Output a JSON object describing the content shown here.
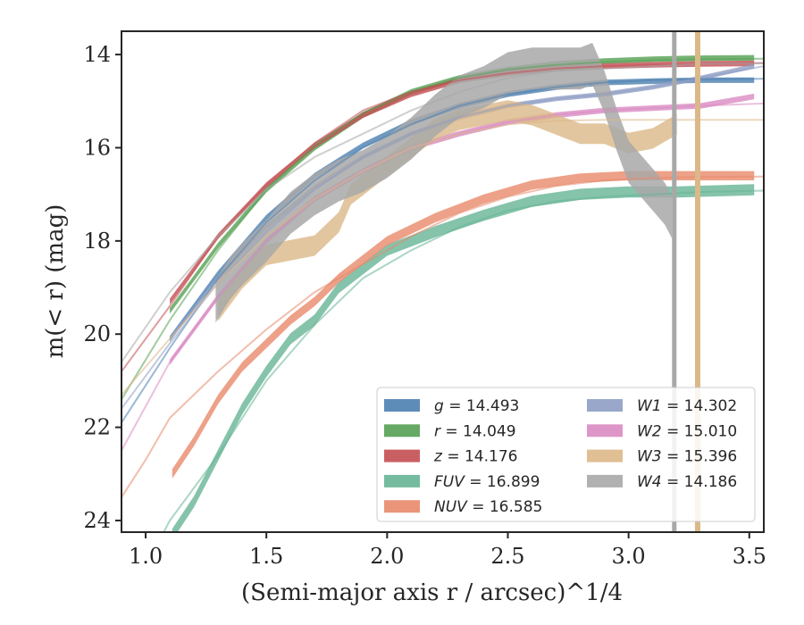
{
  "chart_data": {
    "type": "line",
    "xlabel": "(Semi-major axis r / arcsec)^1/4",
    "ylabel": "m(< r) (mag)",
    "xlim": [
      0.9,
      3.56
    ],
    "ylim": [
      24.25,
      13.5
    ],
    "y_inverted": true,
    "grid": false,
    "legend_position": "lower-right",
    "x_ticks": [
      "1.0",
      "1.5",
      "2.0",
      "2.5",
      "3.0",
      "3.5"
    ],
    "y_ticks": [
      "14",
      "16",
      "18",
      "20",
      "22",
      "24"
    ],
    "legend": [
      {
        "band": "g",
        "label_value": "14.493",
        "color": "#4c7fb0"
      },
      {
        "band": "r",
        "label_value": "14.049",
        "color": "#55a053"
      },
      {
        "band": "z",
        "label_value": "14.176",
        "color": "#c44e52"
      },
      {
        "band": "FUV",
        "label_value": "16.899",
        "color": "#66b496"
      },
      {
        "band": "NUV",
        "label_value": "16.585",
        "color": "#e8896a"
      },
      {
        "band": "W1",
        "label_value": "14.302",
        "color": "#8e9ec4"
      },
      {
        "band": "W2",
        "label_value": "15.010",
        "color": "#da8bc3"
      },
      {
        "band": "W3",
        "label_value": "15.396",
        "color": "#dbb887"
      },
      {
        "band": "W4",
        "label_value": "14.186",
        "color": "#a8a8a8"
      }
    ],
    "series": [
      {
        "name": "g",
        "model_x": [
          0.9,
          1.1,
          1.3,
          1.5,
          1.7,
          1.9,
          2.1,
          2.3,
          2.5,
          2.7,
          2.9,
          3.1,
          3.3,
          3.56
        ],
        "model_y": [
          21.9,
          20.3,
          18.8,
          17.6,
          16.7,
          16.0,
          15.5,
          15.1,
          14.85,
          14.7,
          14.6,
          14.55,
          14.53,
          14.52
        ],
        "band_x": [
          1.1,
          1.3,
          1.5,
          1.7,
          1.9,
          2.1,
          2.3,
          2.5,
          2.7,
          2.9,
          3.1,
          3.3,
          3.52
        ],
        "band_y": [
          20.1,
          18.7,
          17.5,
          16.6,
          15.95,
          15.45,
          15.1,
          14.85,
          14.7,
          14.6,
          14.57,
          14.55,
          14.55
        ],
        "band_halfwidth": 0.06
      },
      {
        "name": "r",
        "model_x": [
          0.9,
          1.1,
          1.3,
          1.5,
          1.7,
          1.9,
          2.1,
          2.3,
          2.5,
          2.7,
          2.9,
          3.1,
          3.3,
          3.56
        ],
        "model_y": [
          21.4,
          19.7,
          18.2,
          16.9,
          15.95,
          15.25,
          14.8,
          14.5,
          14.32,
          14.22,
          14.16,
          14.12,
          14.1,
          14.09
        ],
        "band_x": [
          1.1,
          1.3,
          1.5,
          1.7,
          1.9,
          2.1,
          2.3,
          2.5,
          2.7,
          2.9,
          3.1,
          3.3,
          3.52
        ],
        "band_y": [
          19.5,
          18.1,
          16.9,
          16.0,
          15.3,
          14.8,
          14.5,
          14.32,
          14.2,
          14.14,
          14.1,
          14.08,
          14.07
        ],
        "band_halfwidth": 0.06
      },
      {
        "name": "z",
        "model_x": [
          0.9,
          1.1,
          1.3,
          1.5,
          1.7,
          1.9,
          2.1,
          2.3,
          2.5,
          2.7,
          2.9,
          3.1,
          3.3,
          3.56
        ],
        "model_y": [
          20.8,
          19.4,
          17.9,
          16.8,
          15.9,
          15.2,
          14.8,
          14.55,
          14.4,
          14.3,
          14.25,
          14.22,
          14.2,
          14.18
        ],
        "band_x": [
          1.1,
          1.3,
          1.5,
          1.7,
          1.9,
          2.1,
          2.3,
          2.5,
          2.7,
          2.9,
          3.1,
          3.3,
          3.52
        ],
        "band_y": [
          19.3,
          17.9,
          16.8,
          15.95,
          15.3,
          14.85,
          14.55,
          14.4,
          14.3,
          14.25,
          14.22,
          14.2,
          14.19
        ],
        "band_halfwidth": 0.06
      },
      {
        "name": "FUV",
        "model_x": [
          0.9,
          1.0,
          1.1,
          1.3,
          1.5,
          1.7,
          1.9,
          2.1,
          2.3,
          2.5,
          2.7,
          2.9,
          3.1,
          3.3,
          3.56
        ],
        "model_y": [
          26.0,
          25.0,
          24.0,
          22.6,
          21.0,
          19.8,
          18.8,
          18.2,
          17.7,
          17.35,
          17.15,
          17.05,
          17.0,
          16.95,
          16.92
        ],
        "band_x": [
          1.11,
          1.2,
          1.3,
          1.4,
          1.5,
          1.6,
          1.7,
          1.8,
          1.9,
          2.0,
          2.2,
          2.4,
          2.6,
          2.8,
          3.0,
          3.2,
          3.52
        ],
        "band_y": [
          24.3,
          23.6,
          22.6,
          21.6,
          20.8,
          20.1,
          19.7,
          19.0,
          18.6,
          18.2,
          17.8,
          17.45,
          17.15,
          17.0,
          16.95,
          16.95,
          16.9
        ],
        "band_halfwidth": 0.12
      },
      {
        "name": "NUV",
        "model_x": [
          0.9,
          1.0,
          1.1,
          1.3,
          1.5,
          1.7,
          1.9,
          2.1,
          2.3,
          2.5,
          2.7,
          2.9,
          3.1,
          3.3,
          3.56
        ],
        "model_y": [
          23.5,
          22.7,
          21.8,
          20.8,
          19.9,
          19.1,
          18.5,
          17.9,
          17.4,
          17.05,
          16.82,
          16.7,
          16.65,
          16.63,
          16.62
        ],
        "band_x": [
          1.11,
          1.2,
          1.3,
          1.4,
          1.5,
          1.6,
          1.7,
          1.8,
          1.9,
          2.0,
          2.2,
          2.4,
          2.6,
          2.8,
          3.0,
          3.2,
          3.52
        ],
        "band_y": [
          23.0,
          22.3,
          21.4,
          20.7,
          20.2,
          19.7,
          19.3,
          18.8,
          18.4,
          18.0,
          17.5,
          17.1,
          16.8,
          16.65,
          16.6,
          16.6,
          16.6
        ],
        "band_halfwidth": 0.1
      },
      {
        "name": "W1",
        "model_x": [
          0.9,
          1.1,
          1.3,
          1.5,
          1.7,
          1.9,
          2.1,
          2.3,
          2.5,
          2.7,
          2.9,
          3.1,
          3.3,
          3.56
        ],
        "model_y": [
          21.6,
          20.2,
          18.9,
          17.8,
          16.9,
          16.2,
          15.7,
          15.35,
          15.1,
          14.95,
          14.85,
          14.7,
          14.5,
          14.25
        ],
        "band_x": [
          1.1,
          1.3,
          1.5,
          1.7,
          1.9,
          2.1,
          2.3,
          2.5,
          2.7,
          2.9,
          3.1,
          3.3,
          3.52
        ],
        "band_y": [
          20.1,
          18.8,
          17.7,
          16.85,
          16.2,
          15.7,
          15.35,
          15.1,
          14.95,
          14.85,
          14.7,
          14.5,
          14.25
        ],
        "band_halfwidth": 0.05
      },
      {
        "name": "W2",
        "model_x": [
          0.9,
          1.1,
          1.3,
          1.5,
          1.7,
          1.9,
          2.1,
          2.3,
          2.5,
          2.7,
          2.9,
          3.1,
          3.3,
          3.56
        ],
        "model_y": [
          22.5,
          20.6,
          19.2,
          18.0,
          17.1,
          16.5,
          16.0,
          15.7,
          15.45,
          15.3,
          15.2,
          15.15,
          15.1,
          15.05
        ],
        "band_x": [
          1.1,
          1.3,
          1.5,
          1.7,
          1.9,
          2.1,
          2.3,
          2.5,
          2.7,
          2.9,
          3.1,
          3.3,
          3.52
        ],
        "band_y": [
          20.6,
          19.2,
          18.0,
          17.1,
          16.5,
          16.0,
          15.7,
          15.45,
          15.3,
          15.2,
          15.15,
          15.1,
          14.9
        ],
        "band_halfwidth": 0.06
      },
      {
        "name": "W3",
        "model_x": [
          0.9,
          1.1,
          1.3,
          1.5,
          1.7,
          1.9,
          2.1,
          2.3,
          2.5,
          2.7,
          2.9,
          3.1,
          3.3,
          3.56
        ],
        "model_y": [
          21.3,
          20.1,
          18.9,
          17.9,
          17.1,
          16.5,
          16.0,
          15.7,
          15.5,
          15.42,
          15.4,
          15.4,
          15.4,
          15.4
        ],
        "band_x": [
          1.3,
          1.4,
          1.5,
          1.6,
          1.7,
          1.8,
          1.85,
          1.9,
          2.0,
          2.1,
          2.2,
          2.3,
          2.4,
          2.5,
          2.6,
          2.7,
          2.8,
          2.9,
          3.0,
          3.1,
          3.2
        ],
        "band_y": [
          19.5,
          18.8,
          18.3,
          18.2,
          18.1,
          17.6,
          17.0,
          16.8,
          16.4,
          16.0,
          15.6,
          15.4,
          15.3,
          15.2,
          15.3,
          15.5,
          15.7,
          15.7,
          15.9,
          15.8,
          15.5
        ],
        "band_halfwidth": 0.22
      },
      {
        "name": "W4",
        "model_x": [
          0.9,
          1.1,
          1.3,
          1.5,
          1.7,
          1.9,
          2.1,
          2.3,
          2.5,
          2.7,
          2.9,
          3.1,
          3.3,
          3.56
        ],
        "model_y": [
          20.6,
          19.1,
          17.9,
          16.9,
          16.2,
          15.7,
          15.2,
          14.8,
          14.5,
          14.35,
          14.3,
          14.25,
          14.2,
          14.19
        ],
        "band_x": [
          1.29,
          1.35,
          1.4,
          1.5,
          1.6,
          1.7,
          1.8,
          1.9,
          2.0,
          2.1,
          2.2,
          2.3,
          2.4,
          2.5,
          2.6,
          2.7,
          2.8,
          2.85,
          2.9,
          2.95,
          3.0,
          3.1,
          3.15,
          3.18
        ],
        "band_y": [
          19.3,
          18.8,
          18.5,
          18.0,
          17.4,
          17.0,
          16.7,
          16.5,
          16.2,
          15.8,
          15.3,
          14.9,
          14.7,
          14.4,
          14.3,
          14.3,
          14.3,
          14.2,
          14.8,
          15.6,
          16.3,
          16.9,
          17.2,
          17.5
        ],
        "band_halfwidth": 0.45
      }
    ]
  }
}
